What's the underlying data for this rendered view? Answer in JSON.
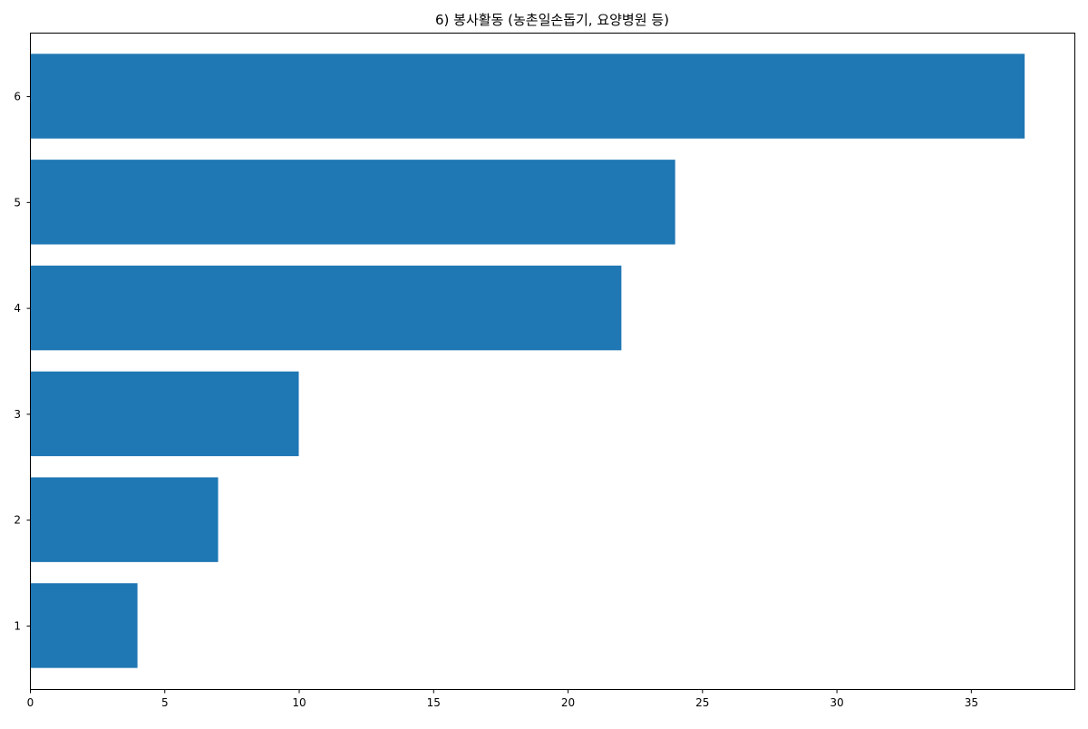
{
  "chart_data": {
    "type": "bar",
    "orientation": "horizontal",
    "title": "6) 봉사활동 (농촌일손돕기, 요양병원 등)",
    "xlabel": "",
    "ylabel": "",
    "categories": [
      "1",
      "2",
      "3",
      "4",
      "5",
      "6"
    ],
    "values": [
      4,
      7,
      10,
      22,
      24,
      37
    ],
    "xlim": [
      0,
      38.85
    ],
    "xticks": [
      "0",
      "5",
      "10",
      "15",
      "20",
      "25",
      "30",
      "35"
    ],
    "bar_color": "#1f77b4",
    "grid": false,
    "legend": false
  }
}
